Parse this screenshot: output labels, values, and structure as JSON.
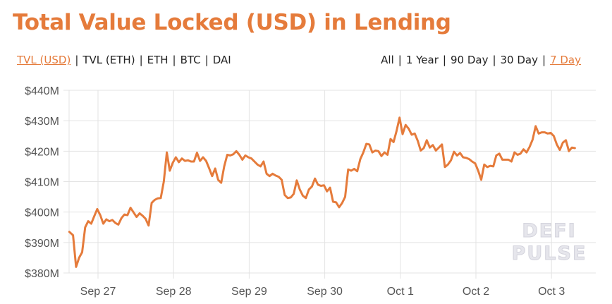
{
  "header": {
    "title": "Total Value Locked (USD) in Lending"
  },
  "metric_tabs": [
    {
      "label": "TVL (USD)",
      "active": true
    },
    {
      "label": "TVL (ETH)",
      "active": false
    },
    {
      "label": "ETH",
      "active": false
    },
    {
      "label": "BTC",
      "active": false
    },
    {
      "label": "DAI",
      "active": false
    }
  ],
  "range_tabs": [
    {
      "label": "All",
      "active": false
    },
    {
      "label": "1 Year",
      "active": false
    },
    {
      "label": "90 Day",
      "active": false
    },
    {
      "label": "30 Day",
      "active": false
    },
    {
      "label": "7 Day",
      "active": true
    }
  ],
  "separator": "|",
  "watermark": {
    "line1": "DEFI",
    "line2": "PULSE"
  },
  "colors": {
    "accent": "#e57b3b",
    "line": "#e57b3b",
    "grid": "#e3e3e3",
    "axis_text": "#555555",
    "nav_text": "#222222",
    "watermark": "#e6e6ec"
  },
  "chart_data": {
    "type": "line",
    "title": "Total Value Locked (USD) in Lending",
    "xlabel": "",
    "ylabel": "",
    "ylim": [
      380,
      440
    ],
    "y_unit": "USD millions",
    "yticks": [
      440,
      430,
      420,
      410,
      400,
      390,
      380
    ],
    "ytick_labels": [
      "$440M",
      "$430M",
      "$420M",
      "$410M",
      "$400M",
      "$390M",
      "$380M"
    ],
    "xtick_labels": [
      "Sep 27",
      "Sep 28",
      "Sep 29",
      "Sep 30",
      "Oct 1",
      "Oct 2",
      "Oct 3"
    ],
    "x_range_days": [
      -0.38,
      6.59
    ],
    "grid": true,
    "legend": null,
    "series": [
      {
        "name": "TVL (USD)",
        "x_days": [
          -0.38,
          -0.33,
          -0.29,
          -0.25,
          -0.21,
          -0.17,
          -0.13,
          -0.09,
          -0.05,
          -0.01,
          0.03,
          0.07,
          0.11,
          0.15,
          0.19,
          0.23,
          0.27,
          0.31,
          0.35,
          0.39,
          0.43,
          0.47,
          0.51,
          0.55,
          0.59,
          0.63,
          0.67,
          0.71,
          0.75,
          0.79,
          0.83,
          0.87,
          0.91,
          0.95,
          0.99,
          1.03,
          1.07,
          1.11,
          1.15,
          1.19,
          1.23,
          1.27,
          1.31,
          1.35,
          1.39,
          1.43,
          1.47,
          1.51,
          1.55,
          1.59,
          1.63,
          1.67,
          1.71,
          1.75,
          1.79,
          1.83,
          1.87,
          1.91,
          1.95,
          1.99,
          2.03,
          2.07,
          2.11,
          2.15,
          2.19,
          2.23,
          2.27,
          2.31,
          2.35,
          2.39,
          2.43,
          2.47,
          2.51,
          2.55,
          2.59,
          2.63,
          2.67,
          2.71,
          2.75,
          2.79,
          2.83,
          2.87,
          2.91,
          2.95,
          2.99,
          3.03,
          3.07,
          3.11,
          3.15,
          3.19,
          3.23,
          3.27,
          3.31,
          3.35,
          3.39,
          3.43,
          3.47,
          3.51,
          3.55,
          3.59,
          3.63,
          3.67,
          3.71,
          3.75,
          3.79,
          3.83,
          3.87,
          3.91,
          3.95,
          3.99,
          4.03,
          4.07,
          4.11,
          4.15,
          4.19,
          4.23,
          4.27,
          4.31,
          4.35,
          4.39,
          4.43,
          4.47,
          4.51,
          4.55,
          4.59,
          4.63,
          4.67,
          4.71,
          4.75,
          4.79,
          4.83,
          4.87,
          4.91,
          4.95,
          4.99,
          5.03,
          5.07,
          5.11,
          5.15,
          5.19,
          5.23,
          5.27,
          5.31,
          5.35,
          5.39,
          5.43,
          5.47,
          5.51,
          5.55,
          5.59,
          5.63,
          5.67,
          5.71,
          5.75,
          5.79,
          5.83,
          5.87,
          5.91,
          5.95,
          5.99,
          6.03,
          6.07,
          6.11,
          6.15,
          6.19,
          6.23,
          6.27,
          6.31,
          6.35,
          6.39,
          6.43,
          6.47,
          6.51,
          6.55,
          6.59
        ],
        "values": [
          393.5,
          392.4,
          382.0,
          385.0,
          386.8,
          395.0,
          397.0,
          396.2,
          398.6,
          401.0,
          399.0,
          396.2,
          397.6,
          397.0,
          397.4,
          396.4,
          395.9,
          398.0,
          399.2,
          399.0,
          401.4,
          399.9,
          398.4,
          399.6,
          398.8,
          397.8,
          395.6,
          403.0,
          404.0,
          404.5,
          404.6,
          410.0,
          419.6,
          413.6,
          416.2,
          418.0,
          416.4,
          417.6,
          416.8,
          417.0,
          416.6,
          416.6,
          419.5,
          416.8,
          418.0,
          416.8,
          414.4,
          411.8,
          414.3,
          410.6,
          409.6,
          415.0,
          418.8,
          418.6,
          419.0,
          420.0,
          418.8,
          417.2,
          418.6,
          418.0,
          417.6,
          416.6,
          415.6,
          415.0,
          416.6,
          412.6,
          411.8,
          412.6,
          412.0,
          411.6,
          410.6,
          405.6,
          404.6,
          404.8,
          406.0,
          410.4,
          407.4,
          405.4,
          404.6,
          407.4,
          408.4,
          411.0,
          409.0,
          408.6,
          408.8,
          406.8,
          408.0,
          403.4,
          403.2,
          401.6,
          403.0,
          405.0,
          414.0,
          413.6,
          414.2,
          413.4,
          417.4,
          419.6,
          422.4,
          422.2,
          419.6,
          420.2,
          420.0,
          418.4,
          419.6,
          418.8,
          424.0,
          423.0,
          426.6,
          431.0,
          425.6,
          428.6,
          427.4,
          425.4,
          425.8,
          423.4,
          420.2,
          421.0,
          423.6,
          421.2,
          422.0,
          420.2,
          421.2,
          422.2,
          414.8,
          415.6,
          417.0,
          419.8,
          418.6,
          419.4,
          418.0,
          417.8,
          417.4,
          416.6,
          416.0,
          413.6,
          410.6,
          415.6,
          414.8,
          415.2,
          415.0,
          418.6,
          419.2,
          417.2,
          417.2,
          417.2,
          416.6,
          419.6,
          418.8,
          419.2,
          420.6,
          419.6,
          421.4,
          423.8,
          428.2,
          425.8,
          426.2,
          426.2,
          425.8,
          426.0,
          425.0,
          422.2,
          420.4,
          422.8,
          423.6,
          420.0,
          421.2,
          421.0
        ]
      }
    ]
  }
}
